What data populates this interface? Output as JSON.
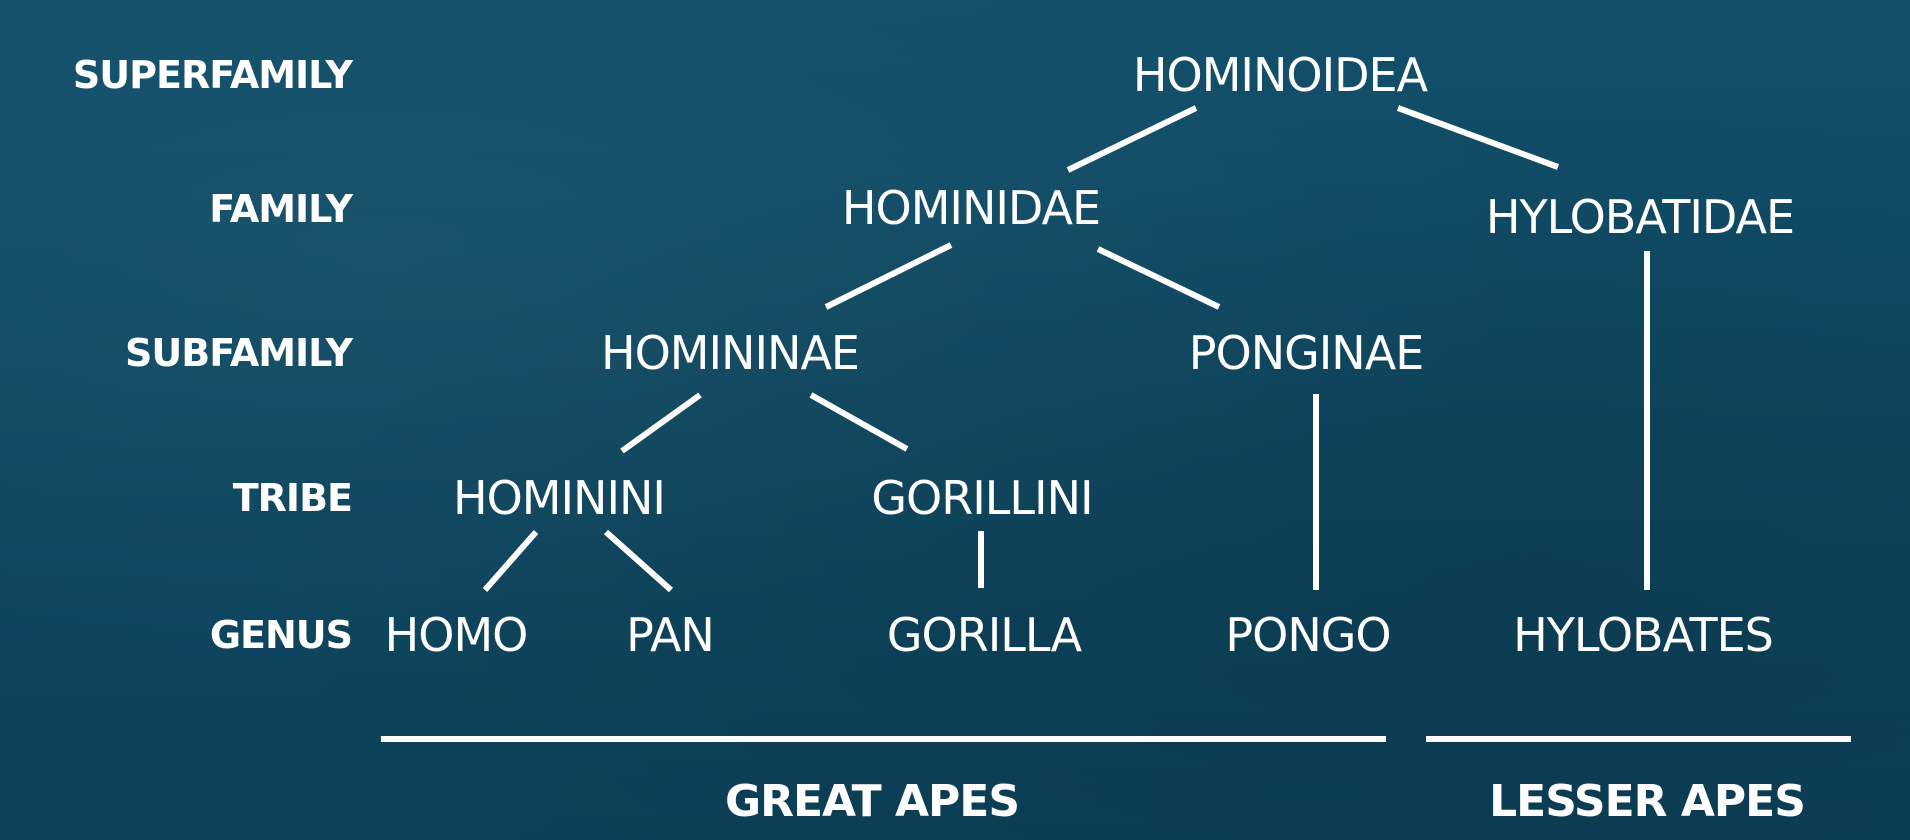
{
  "ranks": {
    "superfamily": "SUPERFAMILY",
    "family": "FAMILY",
    "subfamily": "SUBFAMILY",
    "tribe": "TRIBE",
    "genus": "GENUS"
  },
  "taxa": {
    "hominoidea": "HOMINOIDEA",
    "hominidae": "HOMINIDAE",
    "hylobatidae": "HYLOBATIDAE",
    "homininae": "HOMININAE",
    "ponginae": "PONGINAE",
    "hominini": "HOMININI",
    "gorillini": "GORILLINI",
    "homo": "HOMO",
    "pan": "PAN",
    "gorilla": "GORILLA",
    "pongo": "PONGO",
    "hylobates": "HYLOBATES"
  },
  "groups": {
    "great_apes": "GREAT APES",
    "lesser_apes": "LESSER APES"
  },
  "edges": [
    [
      "hominoidea",
      "hominidae"
    ],
    [
      "hominoidea",
      "hylobatidae"
    ],
    [
      "hominidae",
      "homininae"
    ],
    [
      "hominidae",
      "ponginae"
    ],
    [
      "hylobatidae",
      "hylobates"
    ],
    [
      "homininae",
      "hominini"
    ],
    [
      "homininae",
      "gorillini"
    ],
    [
      "ponginae",
      "pongo"
    ],
    [
      "hominini",
      "homo"
    ],
    [
      "hominini",
      "pan"
    ],
    [
      "gorillini",
      "gorilla"
    ]
  ],
  "colors": {
    "background": "#0f4a64",
    "text": "#ffffff",
    "lines": "#ffffff"
  }
}
